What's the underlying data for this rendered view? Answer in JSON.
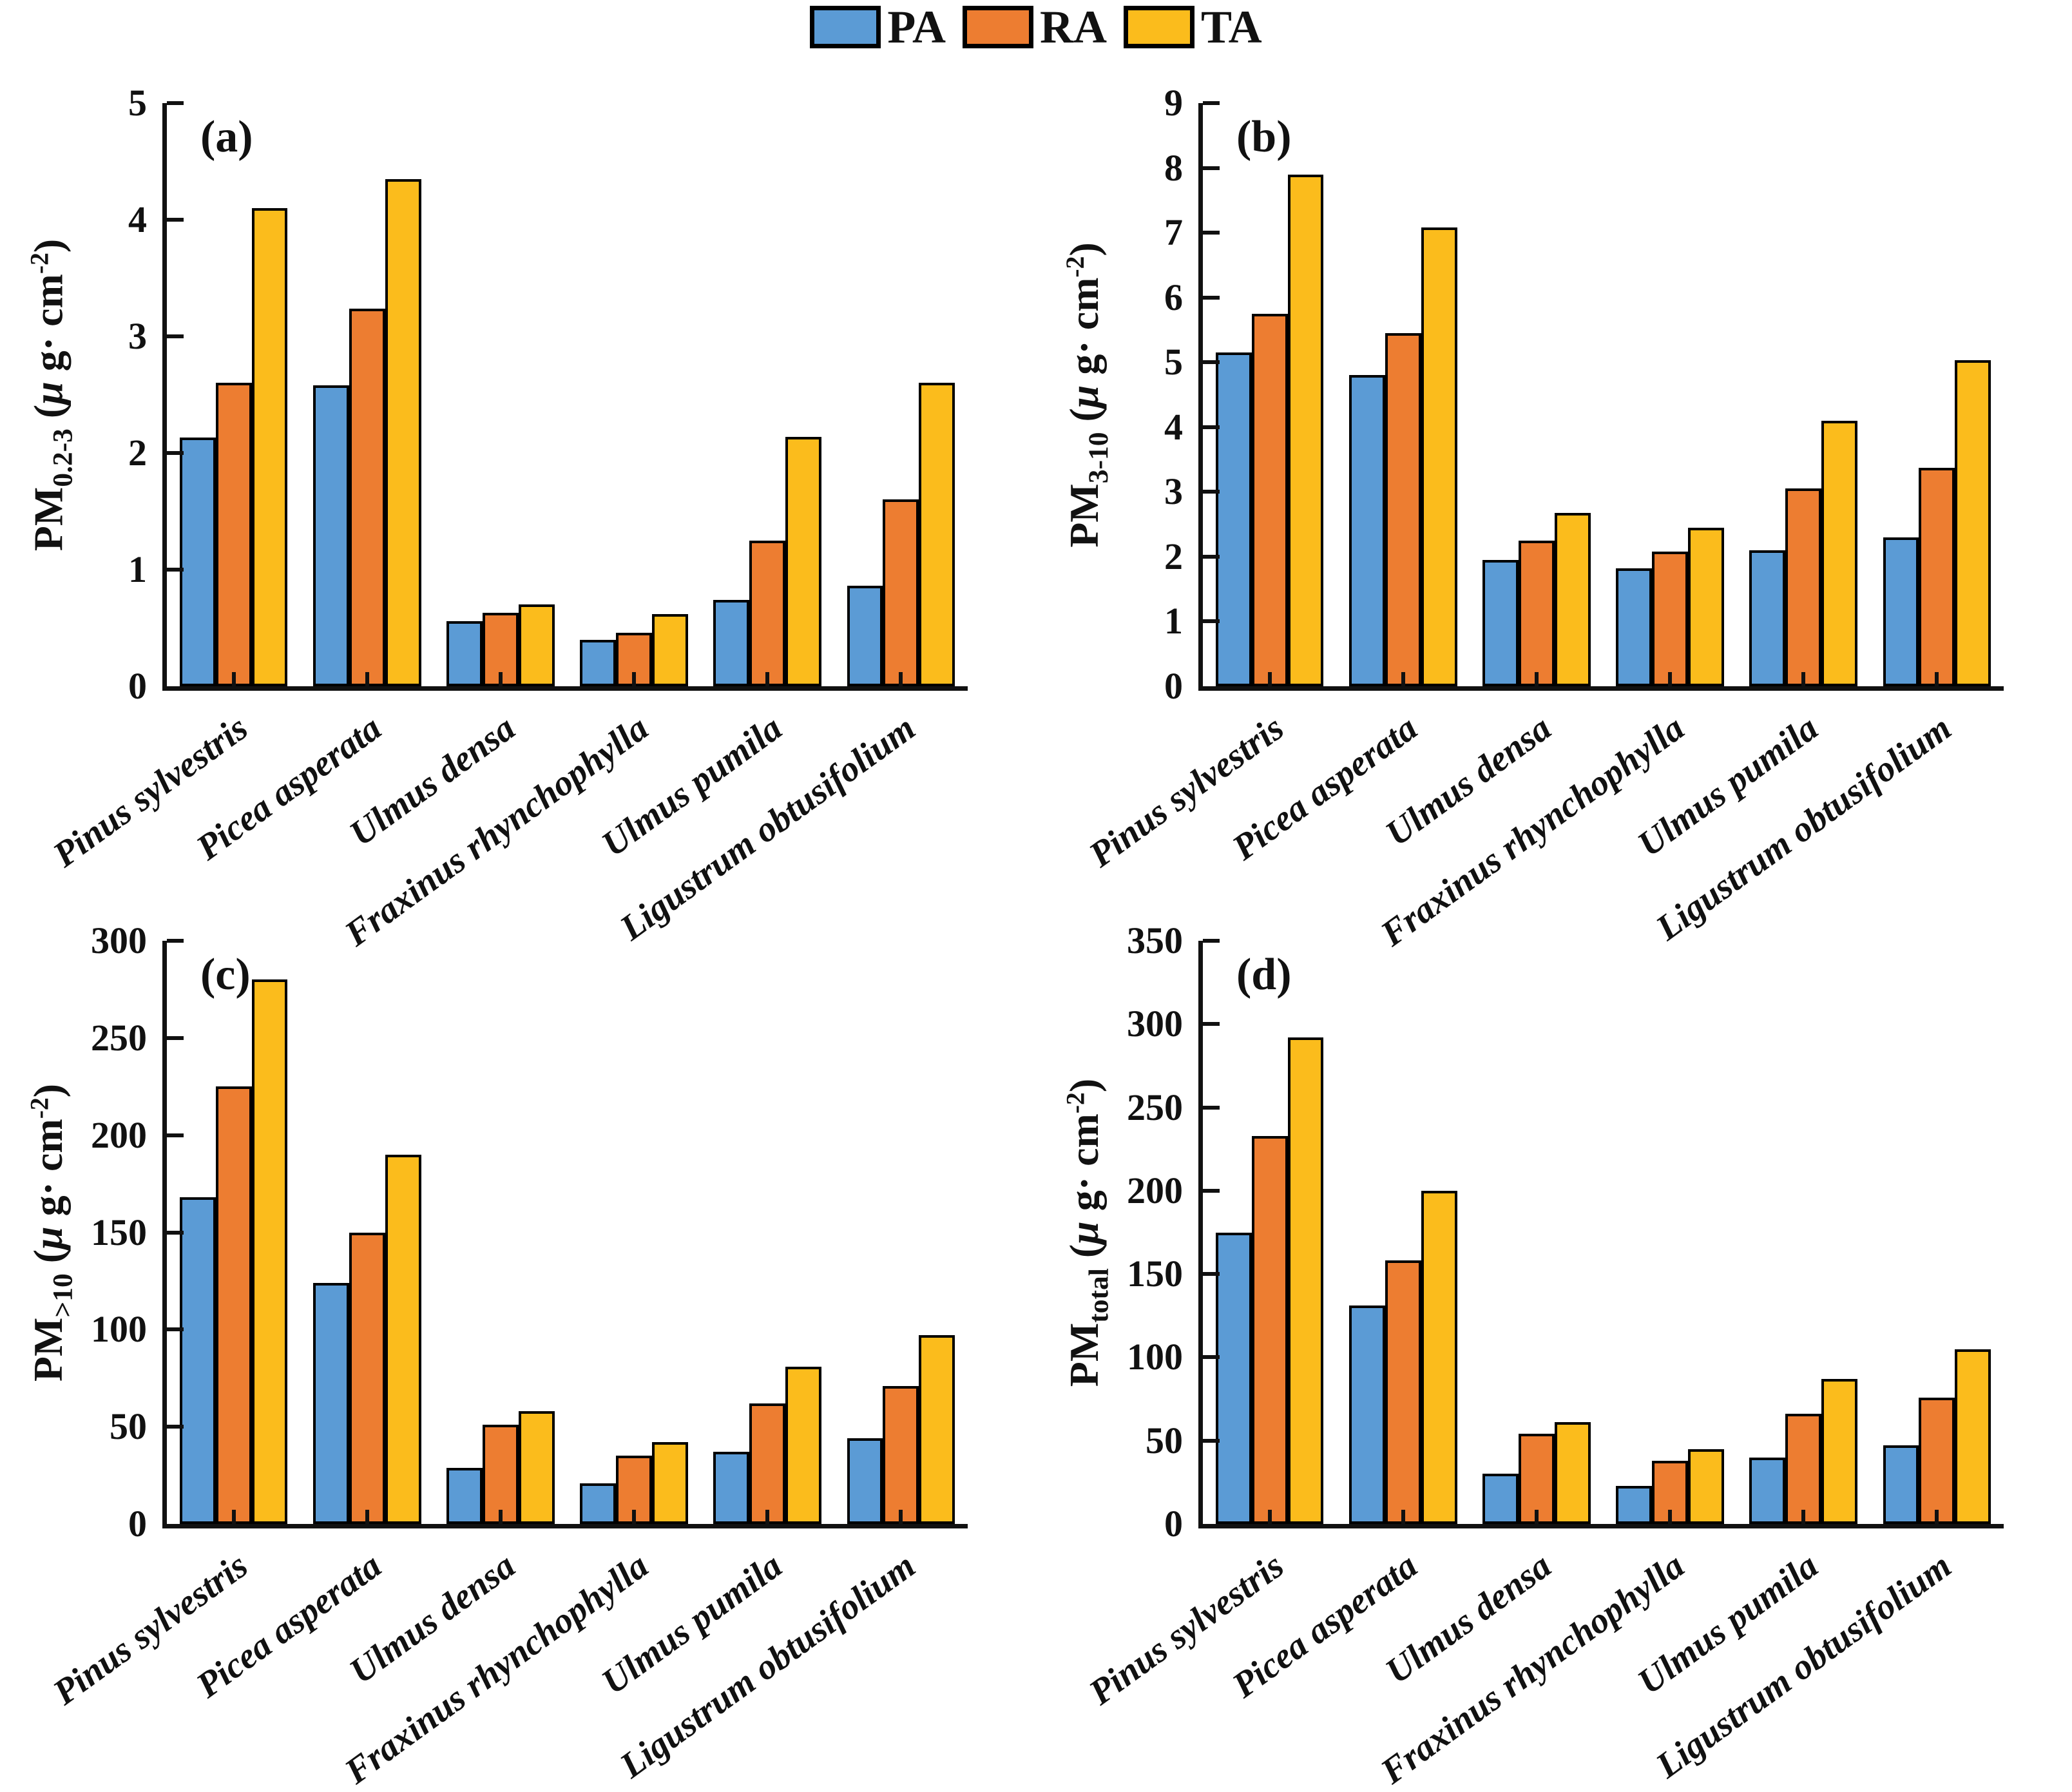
{
  "legend": {
    "items": [
      {
        "label": "PA",
        "color": "#5B9BD5"
      },
      {
        "label": "RA",
        "color": "#ED7D31"
      },
      {
        "label": "TA",
        "color": "#FBBC1C"
      }
    ]
  },
  "axis_unit": {
    "open": " (",
    "mu": "μ",
    "mid": " g· cm",
    "exp": "-2",
    "close": ")"
  },
  "categories": [
    "Pinus sylvestris",
    "Picea asperata",
    "Ulmus densa",
    "Fraxinus rhynchophylla",
    "Ulmus pumila",
    "Ligustrum obtusifolium"
  ],
  "chart_data": [
    {
      "type": "bar",
      "panel": "(a)",
      "ylabel_base": "PM",
      "ylabel_sub": "0.2-3",
      "ylabel_text": "PM 0.2-3 (μ g· cm -2)",
      "xlabel": "",
      "ylim": [
        0,
        5
      ],
      "yticks": [
        0,
        1,
        2,
        3,
        4,
        5
      ],
      "grid": false,
      "legend_position": "top-center",
      "series": [
        {
          "name": "PA",
          "values": [
            2.13,
            2.58,
            0.56,
            0.4,
            0.74,
            0.86
          ]
        },
        {
          "name": "RA",
          "values": [
            2.6,
            3.24,
            0.63,
            0.46,
            1.25,
            1.6
          ]
        },
        {
          "name": "TA",
          "values": [
            4.1,
            4.35,
            0.7,
            0.62,
            2.14,
            2.6
          ]
        }
      ]
    },
    {
      "type": "bar",
      "panel": "(b)",
      "ylabel_base": "PM",
      "ylabel_sub": "3-10",
      "ylabel_text": "PM 3-10 (μ g· cm -2)",
      "xlabel": "",
      "ylim": [
        0,
        9
      ],
      "yticks": [
        0,
        1,
        2,
        3,
        4,
        5,
        6,
        7,
        8,
        9
      ],
      "grid": false,
      "legend_position": "top-center",
      "series": [
        {
          "name": "PA",
          "values": [
            5.15,
            4.8,
            1.95,
            1.82,
            2.1,
            2.3
          ]
        },
        {
          "name": "RA",
          "values": [
            5.75,
            5.45,
            2.25,
            2.08,
            3.05,
            3.37
          ]
        },
        {
          "name": "TA",
          "values": [
            7.9,
            7.08,
            2.68,
            2.45,
            4.1,
            5.03
          ]
        }
      ]
    },
    {
      "type": "bar",
      "panel": "(c)",
      "ylabel_base": "PM",
      "ylabel_sub": ">10",
      "ylabel_text": "PM >10 (μ g· cm -2)",
      "xlabel": "",
      "ylim": [
        0,
        300
      ],
      "yticks": [
        0,
        50,
        100,
        150,
        200,
        250,
        300
      ],
      "grid": false,
      "legend_position": "top-center",
      "series": [
        {
          "name": "PA",
          "values": [
            168,
            124,
            29,
            21,
            37,
            44
          ]
        },
        {
          "name": "RA",
          "values": [
            225,
            150,
            51,
            35,
            62,
            71
          ]
        },
        {
          "name": "TA",
          "values": [
            280,
            190,
            58,
            42,
            81,
            97
          ]
        }
      ]
    },
    {
      "type": "bar",
      "panel": "(d)",
      "ylabel_base": "PM",
      "ylabel_sub": "total",
      "ylabel_text": "PM total (μ g· cm -2)",
      "xlabel": "",
      "ylim": [
        0,
        350
      ],
      "yticks": [
        0,
        50,
        100,
        150,
        200,
        250,
        300,
        350
      ],
      "grid": false,
      "legend_position": "top-center",
      "series": [
        {
          "name": "PA",
          "values": [
            175,
            131,
            30,
            23,
            40,
            47
          ]
        },
        {
          "name": "RA",
          "values": [
            233,
            158,
            54,
            38,
            66,
            76
          ]
        },
        {
          "name": "TA",
          "values": [
            292,
            200,
            61,
            45,
            87,
            105
          ]
        }
      ]
    }
  ]
}
